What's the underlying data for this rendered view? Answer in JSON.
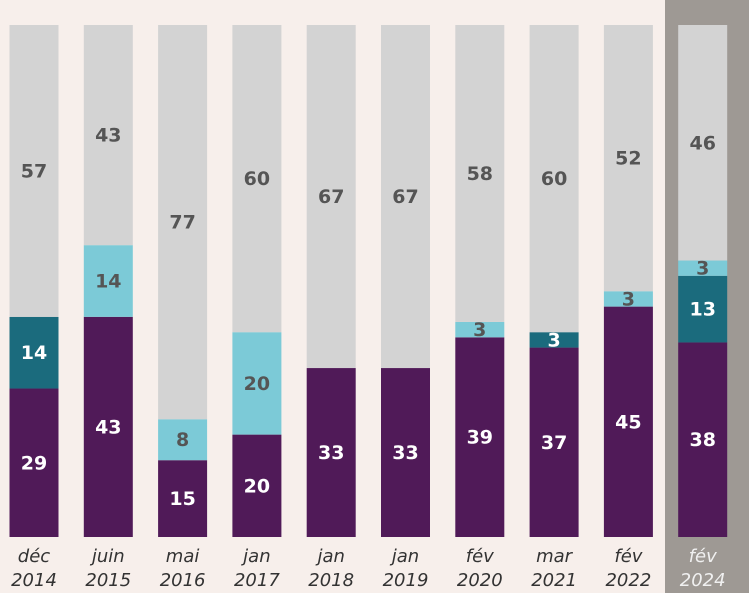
{
  "chart_data": {
    "type": "stacked_bar",
    "categories": [
      [
        "déc",
        "2014"
      ],
      [
        "juin",
        "2015"
      ],
      [
        "mai",
        "2016"
      ],
      [
        "jan",
        "2017"
      ],
      [
        "jan",
        "2018"
      ],
      [
        "jan",
        "2019"
      ],
      [
        "fév",
        "2020"
      ],
      [
        "mar",
        "2021"
      ],
      [
        "fév",
        "2022"
      ],
      [
        "fév",
        "2024"
      ]
    ],
    "series": [
      {
        "color": "#501a58",
        "label_color": "#ffffff",
        "values": [
          29,
          43,
          15,
          20,
          33,
          33,
          39,
          37,
          45,
          38
        ]
      },
      {
        "color": "#1b6b7d",
        "label_color": "#ffffff",
        "values": [
          14,
          null,
          null,
          null,
          null,
          null,
          null,
          3,
          null,
          13
        ]
      },
      {
        "color": "#7ccad7",
        "label_color": "#555555",
        "values": [
          null,
          14,
          8,
          20,
          null,
          null,
          3,
          null,
          3,
          3
        ]
      },
      {
        "color": "#d3d3d3",
        "label_color": "#555555",
        "values": [
          57,
          43,
          77,
          60,
          67,
          67,
          58,
          60,
          52,
          46
        ]
      }
    ],
    "ylim": [
      0,
      100
    ]
  }
}
